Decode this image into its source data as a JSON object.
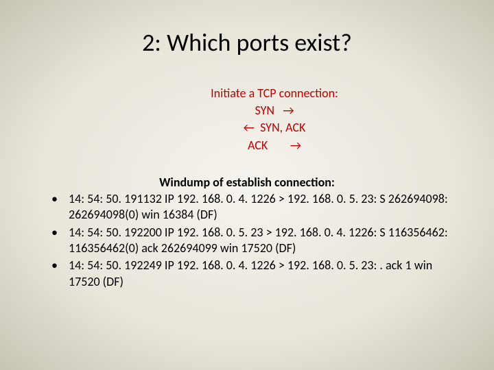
{
  "title": "2: Which ports exist?",
  "handshake": {
    "label": "Initiate a TCP connection:",
    "line1": "SYN   →",
    "line2": "←  SYN, ACK",
    "line3": "ACK        →"
  },
  "windump_title": "Windump of establish connection:",
  "bullets": [
    "14: 54: 50. 191132 IP 192. 168. 0. 4. 1226 > 192. 168. 0. 5. 23: S 262694098: 262694098(0) win 16384 (DF)",
    "14: 54: 50. 192200 IP 192. 168. 0. 5. 23 > 192. 168. 0. 4. 1226: S 116356462: 116356462(0) ack 262694099 win 17520 (DF)",
    "14: 54: 50. 192249 IP 192. 168. 0. 4. 1226 > 192. 168. 0. 5. 23: . ack 1 win 17520 (DF)"
  ],
  "colors": {
    "text": "#000000",
    "accent": "#c00000",
    "bg_center": "#f5f3ed",
    "bg_edge": "#c8c4b5"
  },
  "fontsizes": {
    "title": 36,
    "body": 18
  }
}
